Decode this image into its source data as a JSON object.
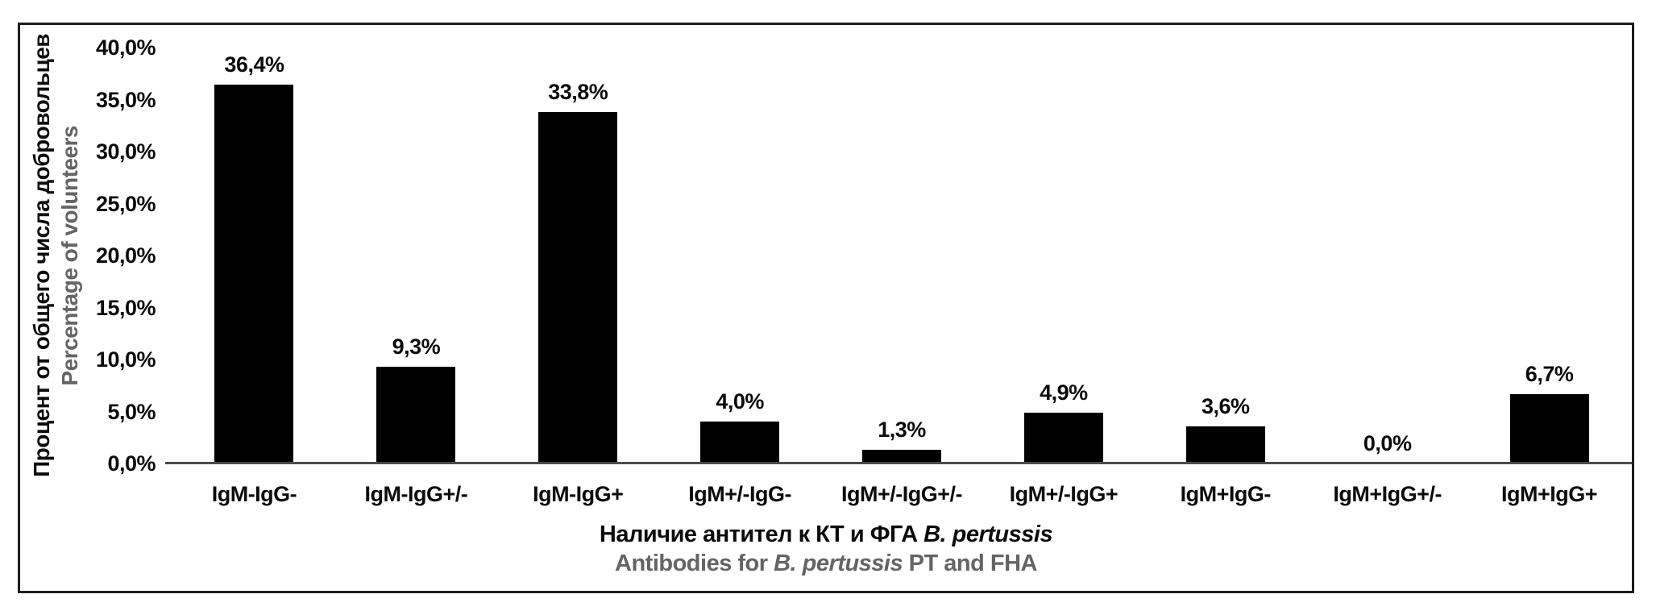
{
  "chart_data": {
    "type": "bar",
    "categories": [
      "IgM-IgG-",
      "IgM-IgG+/-",
      "IgM-IgG+",
      "IgM+/-IgG-",
      "IgM+/-IgG+/-",
      "IgM+/-IgG+",
      "IgM+IgG-",
      "IgM+IgG+/-",
      "IgM+IgG+"
    ],
    "values": [
      36.4,
      9.3,
      33.8,
      4.0,
      1.3,
      4.9,
      3.6,
      0.0,
      6.7
    ],
    "value_labels": [
      "36,4%",
      "9,3%",
      "33,8%",
      "4,0%",
      "1,3%",
      "4,9%",
      "3,6%",
      "0,0%",
      "6,7%"
    ],
    "y_tick_values": [
      40,
      35,
      30,
      25,
      20,
      15,
      10,
      5,
      0
    ],
    "y_tick_labels": [
      "40,0%",
      "35,0%",
      "30,0%",
      "25,0%",
      "20,0%",
      "15,0%",
      "10,0%",
      "5,0%",
      "0,0%"
    ],
    "ylim": [
      0,
      40
    ],
    "ylabel_ru": "Процент от общего числа добровольцев",
    "ylabel_en": "Percentage of volunteers",
    "xlabel_ru": {
      "prefix": "Наличие антител к КТ и ФГА ",
      "italic": "B. pertussis",
      "suffix": ""
    },
    "xlabel_en": {
      "prefix": "Antibodies for ",
      "italic": "B. pertussis",
      "suffix": " PT and FHA"
    },
    "bar_color": "#000000",
    "primary_text_color": "#0b0b0b",
    "secondary_text_color": "#646464",
    "grid": false,
    "legend": false
  }
}
